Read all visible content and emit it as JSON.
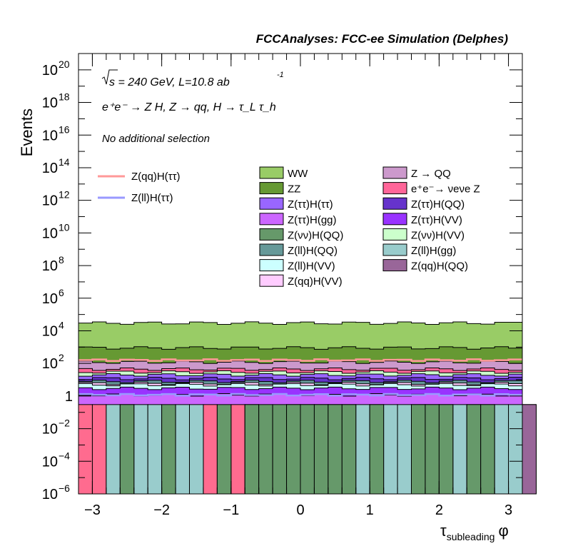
{
  "header": {
    "title": "FCCAnalyses: FCC-ee Simulation (Delphes)",
    "energy_text": "s = 240 GeV, L=10.8 ab",
    "lumi_exponent": "-1",
    "process_text": "e⁺e⁻ → Z H, Z → qq, H → τ_L τ_h",
    "selection_text": "No additional selection"
  },
  "chart_data": {
    "type": "stacked-histogram",
    "xlabel": "τsubleading φ",
    "ylabel": "Events",
    "log_y": true,
    "xlim": [
      -3.2,
      3.2
    ],
    "ylim": [
      1e-06,
      1e+21
    ],
    "grid": false,
    "x_ticks": [
      -3,
      -2,
      -1,
      0,
      1,
      2,
      3
    ],
    "y_ticks": [
      {
        "value": 1e-06,
        "label": "10",
        "exp": "−6"
      },
      {
        "value": 0.0001,
        "label": "10",
        "exp": "−4"
      },
      {
        "value": 0.01,
        "label": "10",
        "exp": "−2"
      },
      {
        "value": 1,
        "label": "1",
        "exp": ""
      },
      {
        "value": 100.0,
        "label": "10",
        "exp": "2"
      },
      {
        "value": 10000.0,
        "label": "10",
        "exp": "4"
      },
      {
        "value": 1000000.0,
        "label": "10",
        "exp": "6"
      },
      {
        "value": 100000000.0,
        "label": "10",
        "exp": "8"
      },
      {
        "value": 10000000000.0,
        "label": "10",
        "exp": "10"
      },
      {
        "value": 1000000000000.0,
        "label": "10",
        "exp": "12"
      },
      {
        "value": 100000000000000.0,
        "label": "10",
        "exp": "14"
      },
      {
        "value": 1e+16,
        "label": "10",
        "exp": "16"
      },
      {
        "value": 1e+18,
        "label": "10",
        "exp": "18"
      },
      {
        "value": 1e+20,
        "label": "10",
        "exp": "20"
      }
    ],
    "bin_edges_count": 33,
    "bottom_cells": [
      {
        "name": "e+e- → νeνe Z",
        "color": "#ff6b8f",
        "bins": [
          0,
          1,
          3,
          9,
          11
        ]
      },
      {
        "name": "Z(ll)H(gg)",
        "color": "#99cccc",
        "bins": [
          2,
          4,
          5,
          7,
          8,
          12,
          15,
          16,
          17,
          18,
          19,
          20,
          21,
          22,
          23,
          24,
          25,
          26,
          27,
          28,
          29,
          30,
          31,
          32
        ]
      },
      {
        "name": "Z(νν)H(QQ)",
        "color": "#66996a",
        "bins": [
          3,
          6,
          10,
          12,
          13,
          14,
          15,
          16,
          17,
          18,
          19,
          21,
          24,
          25,
          26,
          28,
          29
        ]
      },
      {
        "name": "Z(qq)H(QQ)",
        "color": "#996699",
        "bins": [
          32
        ]
      }
    ],
    "stack_levels": [
      {
        "name": "Z(ττ)H(VV)",
        "color": "#9933ff",
        "level": 3
      },
      {
        "name": "Z(ττ)H(gg)",
        "color": "#cc66ff",
        "level": 1.2
      },
      {
        "name": "Z(ll)H(VV)",
        "color": "#ccffff",
        "level": 5
      },
      {
        "name": "Z(qq)H(VV)",
        "color": "#ffccff",
        "level": 6
      },
      {
        "name": "Z(ll)H(QQ)",
        "color": "#669999",
        "level": 8
      },
      {
        "name": "Z(ττ)H(QQ)",
        "color": "#6633cc",
        "level": 12
      },
      {
        "name": "Z(ττ)H(ττ)",
        "color": "#9966ff",
        "level": 20
      },
      {
        "name": "Z(νν)H(VV)",
        "color": "#ccffcc",
        "level": 30
      },
      {
        "name": "e+e- → νeνe Z",
        "color": "#ff6699",
        "level": 45
      },
      {
        "name": "Z → QQ",
        "color": "#cc99cc",
        "level": 120
      },
      {
        "name": "ZZ",
        "color": "#669933",
        "level": 900
      },
      {
        "name": "WW",
        "color": "#99cc66",
        "level": 30000
      }
    ],
    "signal_lines": [
      {
        "name": "Z(qq)H(ττ)",
        "color": "#ff9999",
        "values_level": 160
      },
      {
        "name": "Z(ll)H(ττ)",
        "color": "#9999ff",
        "values_level": 1.2
      }
    ],
    "legend_left": [
      {
        "label": "Z(qq)H(ττ)",
        "color": "#ff9999"
      },
      {
        "label": "Z(ll)H(ττ)",
        "color": "#9999ff"
      }
    ],
    "legend_col1": [
      {
        "label": "WW",
        "color": "#99cc66"
      },
      {
        "label": "ZZ",
        "color": "#669933"
      },
      {
        "label": "Z(ττ)H(ττ)",
        "color": "#9966ff"
      },
      {
        "label": "Z(ττ)H(gg)",
        "color": "#cc66ff"
      },
      {
        "label": "Z(νν)H(QQ)",
        "color": "#66996a"
      },
      {
        "label": "Z(ll)H(QQ)",
        "color": "#669999"
      },
      {
        "label": "Z(ll)H(VV)",
        "color": "#ccffff"
      },
      {
        "label": "Z(qq)H(VV)",
        "color": "#ffccff"
      }
    ],
    "legend_col2": [
      {
        "label": "Z → QQ",
        "color": "#cc99cc"
      },
      {
        "label": "e⁺e⁻→ νeνe Z",
        "color": "#ff6699"
      },
      {
        "label": "Z(ττ)H(QQ)",
        "color": "#6633cc"
      },
      {
        "label": "Z(ττ)H(VV)",
        "color": "#9933ff"
      },
      {
        "label": "Z(νν)H(VV)",
        "color": "#ccffcc"
      },
      {
        "label": "Z(ll)H(gg)",
        "color": "#99cccc"
      },
      {
        "label": "Z(qq)H(QQ)",
        "color": "#996699"
      }
    ]
  }
}
